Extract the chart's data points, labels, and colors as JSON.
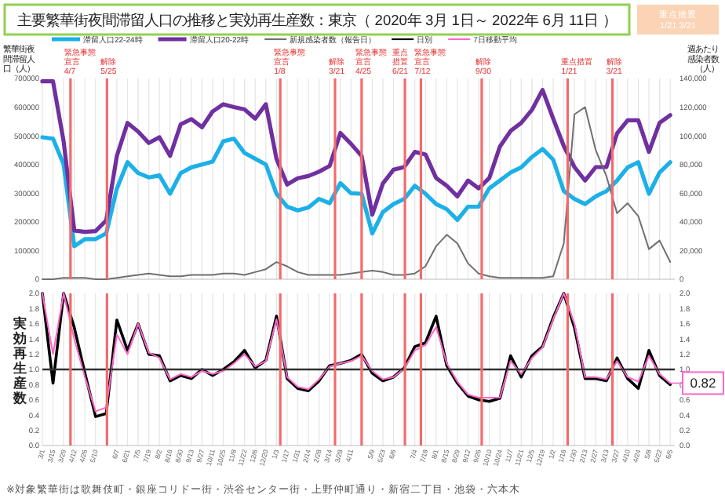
{
  "chart_data": [
    {
      "type": "line",
      "title": "主要繁華街夜間滞留人口の推移と実効再生産数：東京（ 2020年 3月 1日～ 2022年 6月 11日 ）",
      "ylabel": "繁華街夜間滞留人口（人）",
      "y2label": "週あたり感染者数（人）",
      "legend": "top",
      "grid": "x",
      "tick_labels": "y",
      "annotations": [
        "重点措置 1/21 3/21"
      ],
      "x": [
        "2020-03-01",
        "2020-03-15",
        "2020-03-29",
        "2020-04-12",
        "2020-04-26",
        "2020-05-10",
        "2020-05-24",
        "2020-06-07",
        "2020-06-21",
        "2020-07-05",
        "2020-07-19",
        "2020-08-02",
        "2020-08-16",
        "2020-08-30",
        "2020-09-13",
        "2020-09-27",
        "2020-10-11",
        "2020-10-25",
        "2020-11-08",
        "2020-11-22",
        "2020-12-06",
        "2020-12-20",
        "2021-01-03",
        "2021-01-17",
        "2021-01-31",
        "2021-02-14",
        "2021-02-28",
        "2021-03-14",
        "2021-03-28",
        "2021-04-11",
        "2021-04-25",
        "2021-05-09",
        "2021-05-23",
        "2021-06-06",
        "2021-06-20",
        "2021-07-04",
        "2021-07-18",
        "2021-08-01",
        "2021-08-15",
        "2021-08-29",
        "2021-09-12",
        "2021-09-26",
        "2021-10-10",
        "2021-10-24",
        "2021-11-07",
        "2021-11-21",
        "2021-12-05",
        "2021-12-19",
        "2022-01-02",
        "2022-01-16",
        "2022-01-30",
        "2022-02-13",
        "2022-02-27",
        "2022-03-13",
        "2022-03-27",
        "2022-04-10",
        "2022-04-24",
        "2022-05-08",
        "2022-05-22",
        "2022-06-05"
      ],
      "xlim": [
        "2020-03-01",
        "2022-06-11"
      ],
      "xticks": [
        {
          "value": "2020-03-01",
          "label": null
        },
        {
          "value": "2020-03-15",
          "label": null
        },
        {
          "value": "2020-03-29",
          "label": null
        },
        {
          "value": "2020-04-12",
          "label": null
        },
        {
          "value": "2020-04-26",
          "label": null
        },
        {
          "value": "2020-05-10",
          "label": null
        },
        {
          "value": "2020-06-07",
          "label": null
        },
        {
          "value": "2020-06-21",
          "label": null
        },
        {
          "value": "2020-07-05",
          "label": null
        },
        {
          "value": "2020-07-19",
          "label": null
        },
        {
          "value": "2020-08-02",
          "label": null
        },
        {
          "value": "2020-08-16",
          "label": null
        },
        {
          "value": "2020-08-30",
          "label": null
        },
        {
          "value": "2020-09-13",
          "label": null
        },
        {
          "value": "2020-09-27",
          "label": null
        },
        {
          "value": "2020-10-11",
          "label": null
        },
        {
          "value": "2020-10-25",
          "label": null
        },
        {
          "value": "2020-11-08",
          "label": null
        },
        {
          "value": "2020-11-22",
          "label": null
        },
        {
          "value": "2020-12-06",
          "label": null
        },
        {
          "value": "2020-12-20",
          "label": null
        },
        {
          "value": "2021-01-03",
          "label": null
        },
        {
          "value": "2021-01-17",
          "label": null
        },
        {
          "value": "2021-01-31",
          "label": null
        },
        {
          "value": "2021-02-14",
          "label": null
        },
        {
          "value": "2021-02-28",
          "label": null
        },
        {
          "value": "2021-03-14",
          "label": null
        },
        {
          "value": "2021-03-28",
          "label": null
        },
        {
          "value": "2021-04-11",
          "label": null
        },
        {
          "value": "2021-05-09",
          "label": null
        },
        {
          "value": "2021-05-23",
          "label": null
        },
        {
          "value": "2021-06-06",
          "label": null
        },
        {
          "value": "2021-07-04",
          "label": null
        },
        {
          "value": "2021-07-18",
          "label": null
        },
        {
          "value": "2021-08-01",
          "label": null
        },
        {
          "value": "2021-08-15",
          "label": null
        },
        {
          "value": "2021-08-29",
          "label": null
        },
        {
          "value": "2021-09-12",
          "label": null
        },
        {
          "value": "2021-09-26",
          "label": null
        },
        {
          "value": "2021-10-10",
          "label": null
        },
        {
          "value": "2021-10-24",
          "label": null
        },
        {
          "value": "2021-11-07",
          "label": null
        },
        {
          "value": "2021-11-21",
          "label": null
        },
        {
          "value": "2021-12-05",
          "label": null
        },
        {
          "value": "2021-12-19",
          "label": null
        },
        {
          "value": "2022-01-02",
          "label": null
        },
        {
          "value": "2022-01-16",
          "label": null
        },
        {
          "value": "2022-01-30",
          "label": null
        },
        {
          "value": "2022-02-13",
          "label": null
        },
        {
          "value": "2022-02-27",
          "label": null
        },
        {
          "value": "2022-03-13",
          "label": null
        },
        {
          "value": "2022-03-27",
          "label": null
        },
        {
          "value": "2022-04-10",
          "label": null
        },
        {
          "value": "2022-04-24",
          "label": null
        },
        {
          "value": "2022-05-08",
          "label": null
        },
        {
          "value": "2022-05-22",
          "label": null
        },
        {
          "value": "2022-06-05",
          "label": null
        }
      ],
      "ylim": [
        0,
        700000
      ],
      "yticks": [
        0,
        100000,
        200000,
        300000,
        400000,
        500000,
        600000,
        700000
      ],
      "y2lim": [
        0,
        140000
      ],
      "y2ticks": [
        0,
        {
          "value": 20000,
          "label": "20,000"
        },
        {
          "value": 40000,
          "label": "40,000"
        },
        {
          "value": 60000,
          "label": "60,000"
        },
        {
          "value": 80000,
          "label": "80,000"
        },
        {
          "value": 100000,
          "label": "100,000"
        },
        {
          "value": 120000,
          "label": "120,000"
        },
        {
          "value": 140000,
          "label": "140,000"
        }
      ],
      "series": [
        {
          "name": "滞留人口22-24時",
          "color": "#1cb0e8",
          "values": [
            495000,
            490000,
            400000,
            115000,
            140000,
            140000,
            160000,
            316000,
            408000,
            370000,
            355000,
            362000,
            298000,
            370000,
            390000,
            400000,
            410000,
            481000,
            490000,
            440000,
            420000,
            400000,
            298000,
            253000,
            240000,
            250000,
            280000,
            265000,
            335000,
            300000,
            298000,
            160000,
            234000,
            262000,
            280000,
            326000,
            298000,
            262000,
            244000,
            207000,
            253000,
            253000,
            317000,
            344000,
            372000,
            390000,
            426000,
            454000,
            417000,
            307000,
            280000,
            262000,
            289000,
            307000,
            344000,
            390000,
            408000,
            298000,
            372000,
            408000
          ]
        },
        {
          "name": "滞留人口20-22時",
          "color": "#7030a0",
          "values": [
            690000,
            690000,
            480000,
            170000,
            165000,
            168000,
            205000,
            430000,
            545000,
            515000,
            475000,
            495000,
            430000,
            540000,
            558000,
            530000,
            585000,
            610000,
            600000,
            592000,
            560000,
            610000,
            420000,
            330000,
            352000,
            360000,
            375000,
            395000,
            510000,
            472000,
            430000,
            225000,
            334000,
            382000,
            391000,
            444000,
            435000,
            353000,
            326000,
            289000,
            344000,
            317000,
            353000,
            463000,
            517000,
            545000,
            590000,
            660000,
            560000,
            464000,
            391000,
            344000,
            391000,
            391000,
            508000,
            554000,
            554000,
            444000,
            545000,
            572000
          ]
        },
        {
          "name": "新規感染者数（報告日）",
          "color": "#707070",
          "axis": "y2",
          "values": [
            0,
            0,
            1000,
            1000,
            1000,
            0,
            0,
            1000,
            2000,
            3000,
            4000,
            3000,
            2000,
            2000,
            3000,
            3000,
            3000,
            4000,
            4000,
            3000,
            5000,
            7000,
            12000,
            9000,
            5000,
            3000,
            3000,
            3000,
            3000,
            4000,
            5000,
            6000,
            5000,
            3000,
            3000,
            4000,
            9000,
            23000,
            31000,
            25000,
            11000,
            4000,
            2000,
            1000,
            1000,
            1000,
            1000,
            1000,
            2000,
            25000,
            115000,
            120000,
            90000,
            72000,
            46000,
            53000,
            44000,
            21000,
            27000,
            12000
          ]
        }
      ],
      "ref_lines": [
        {
          "axis": "x",
          "value": "2020-04-07",
          "label": "緊急事態宣言 4/7",
          "color": "#f26b6b"
        },
        {
          "axis": "x",
          "value": "2020-05-25",
          "label": "解除 5/25",
          "color": "#f26b6b"
        },
        {
          "axis": "x",
          "value": "2021-01-08",
          "label": "緊急事態宣言 1/8",
          "color": "#f26b6b"
        },
        {
          "axis": "x",
          "value": "2021-03-21",
          "label": "解除 3/21",
          "color": "#f26b6b"
        },
        {
          "axis": "x",
          "value": "2021-04-25",
          "label": "緊急事態宣言 4/25",
          "color": "#f26b6b"
        },
        {
          "axis": "x",
          "value": "2021-06-21",
          "label": "重点措置 6/21",
          "color": "#f26b6b"
        },
        {
          "axis": "x",
          "value": "2021-07-12",
          "label": "緊急事態宣言 7/12",
          "color": "#f26b6b"
        },
        {
          "axis": "x",
          "value": "2021-09-30",
          "label": "解除 9/30",
          "color": "#f26b6b"
        },
        {
          "axis": "x",
          "value": "2022-01-21",
          "label": "重点措置 1/21",
          "color": "#f26b6b"
        },
        {
          "axis": "x",
          "value": "2022-03-21",
          "label": "解除 3/21",
          "color": "#f26b6b"
        }
      ]
    },
    {
      "type": "line",
      "ylabel": "実効再生産数",
      "legend": "top",
      "grid": "x",
      "annotations": [
        {
          "text": "0.82",
          "x": "2022-06-05",
          "y": 0.82
        },
        "※対象繁華街は歌舞伎町・銀座コリドー街・渋谷センター街・上野仲町通り・新宿二丁目・池袋・六本木"
      ],
      "x": [
        "2020-03-01",
        "2020-03-15",
        "2020-03-29",
        "2020-04-12",
        "2020-04-26",
        "2020-05-10",
        "2020-05-24",
        "2020-06-07",
        "2020-06-21",
        "2020-07-05",
        "2020-07-19",
        "2020-08-02",
        "2020-08-16",
        "2020-08-30",
        "2020-09-13",
        "2020-09-27",
        "2020-10-11",
        "2020-10-25",
        "2020-11-08",
        "2020-11-22",
        "2020-12-06",
        "2020-12-20",
        "2021-01-03",
        "2021-01-17",
        "2021-01-31",
        "2021-02-14",
        "2021-02-28",
        "2021-03-14",
        "2021-03-28",
        "2021-04-11",
        "2021-04-25",
        "2021-05-09",
        "2021-05-23",
        "2021-06-06",
        "2021-06-20",
        "2021-07-04",
        "2021-07-18",
        "2021-08-01",
        "2021-08-15",
        "2021-08-29",
        "2021-09-12",
        "2021-09-26",
        "2021-10-10",
        "2021-10-24",
        "2021-11-07",
        "2021-11-21",
        "2021-12-05",
        "2021-12-19",
        "2022-01-02",
        "2022-01-16",
        "2022-01-30",
        "2022-02-13",
        "2022-02-27",
        "2022-03-13",
        "2022-03-27",
        "2022-04-10",
        "2022-04-24",
        "2022-05-08",
        "2022-05-22",
        "2022-06-05"
      ],
      "xlim": [
        "2020-03-01",
        "2022-06-11"
      ],
      "xticks": [
        {
          "value": "2020-03-01",
          "label": "3/1"
        },
        {
          "value": "2020-03-15",
          "label": "3/15"
        },
        {
          "value": "2020-03-29",
          "label": "3/29"
        },
        {
          "value": "2020-04-12",
          "label": "4/12"
        },
        {
          "value": "2020-04-26",
          "label": "4/26"
        },
        {
          "value": "2020-05-10",
          "label": "5/10"
        },
        {
          "value": "2020-06-07",
          "label": "6/7"
        },
        {
          "value": "2020-06-21",
          "label": "6/21"
        },
        {
          "value": "2020-07-05",
          "label": "7/5"
        },
        {
          "value": "2020-07-19",
          "label": "7/19"
        },
        {
          "value": "2020-08-02",
          "label": "8/2"
        },
        {
          "value": "2020-08-16",
          "label": "8/16"
        },
        {
          "value": "2020-08-30",
          "label": "8/30"
        },
        {
          "value": "2020-09-13",
          "label": "9/13"
        },
        {
          "value": "2020-09-27",
          "label": "9/27"
        },
        {
          "value": "2020-10-11",
          "label": "10/11"
        },
        {
          "value": "2020-10-25",
          "label": "10/25"
        },
        {
          "value": "2020-11-08",
          "label": "11/8"
        },
        {
          "value": "2020-11-22",
          "label": "11/22"
        },
        {
          "value": "2020-12-06",
          "label": "12/6"
        },
        {
          "value": "2020-12-20",
          "label": "12/20"
        },
        {
          "value": "2021-01-03",
          "label": "1/3"
        },
        {
          "value": "2021-01-17",
          "label": "1/17"
        },
        {
          "value": "2021-01-31",
          "label": "1/31"
        },
        {
          "value": "2021-02-14",
          "label": "2/14"
        },
        {
          "value": "2021-02-28",
          "label": "2/28"
        },
        {
          "value": "2021-03-14",
          "label": "3/14"
        },
        {
          "value": "2021-03-28",
          "label": "3/28"
        },
        {
          "value": "2021-04-11",
          "label": "4/11"
        },
        {
          "value": "2021-05-09",
          "label": "5/9"
        },
        {
          "value": "2021-05-23",
          "label": "5/23"
        },
        {
          "value": "2021-06-06",
          "label": "6/6"
        },
        {
          "value": "2021-07-04",
          "label": "7/4"
        },
        {
          "value": "2021-07-18",
          "label": "7/18"
        },
        {
          "value": "2021-08-01",
          "label": "8/1"
        },
        {
          "value": "2021-08-15",
          "label": "8/15"
        },
        {
          "value": "2021-08-29",
          "label": "8/29"
        },
        {
          "value": "2021-09-12",
          "label": "9/12"
        },
        {
          "value": "2021-09-26",
          "label": "9/26"
        },
        {
          "value": "2021-10-10",
          "label": "10/10"
        },
        {
          "value": "2021-10-24",
          "label": "10/24"
        },
        {
          "value": "2021-11-07",
          "label": "11/7"
        },
        {
          "value": "2021-11-21",
          "label": "11/21"
        },
        {
          "value": "2021-12-05",
          "label": "12/5"
        },
        {
          "value": "2021-12-19",
          "label": "12/19"
        },
        {
          "value": "2022-01-02",
          "label": "1/2"
        },
        {
          "value": "2022-01-16",
          "label": "1/16"
        },
        {
          "value": "2022-01-30",
          "label": "1/30"
        },
        {
          "value": "2022-02-13",
          "label": "2/13"
        },
        {
          "value": "2022-02-27",
          "label": "2/27"
        },
        {
          "value": "2022-03-13",
          "label": "3/13"
        },
        {
          "value": "2022-03-27",
          "label": "3/27"
        },
        {
          "value": "2022-04-10",
          "label": "4/10"
        },
        {
          "value": "2022-04-24",
          "label": "4/24"
        },
        {
          "value": "2022-05-08",
          "label": "5/8"
        },
        {
          "value": "2022-05-22",
          "label": "5/22"
        },
        {
          "value": "2022-06-05",
          "label": "6/5"
        }
      ],
      "ylim": [
        0,
        2
      ],
      "yticks": [
        {
          "value": 0,
          "label": "0.0"
        },
        0.2,
        0.4,
        0.6,
        0.8,
        {
          "value": 1,
          "label": "1.0"
        },
        1.2,
        1.4,
        1.6,
        1.8,
        {
          "value": 2,
          "label": "2.0"
        }
      ],
      "y2lim": [
        0,
        2
      ],
      "y2ticks": [
        {
          "value": 0,
          "label": "0.0"
        },
        0.2,
        0.4,
        0.6,
        0.8,
        {
          "value": 1,
          "label": "1.0"
        },
        1.2,
        1.4,
        1.6,
        1.8,
        {
          "value": 2,
          "label": "2.0"
        }
      ],
      "series": [
        {
          "name": "日別",
          "color": "#000000",
          "values": [
            2.0,
            0.82,
            2.0,
            1.55,
            0.95,
            0.38,
            0.42,
            1.65,
            1.25,
            1.6,
            1.2,
            1.18,
            0.85,
            0.92,
            0.88,
            1.0,
            0.92,
            1.0,
            1.1,
            1.25,
            1.02,
            1.12,
            1.7,
            0.88,
            0.75,
            0.72,
            0.85,
            1.05,
            1.08,
            1.12,
            1.2,
            0.95,
            0.85,
            0.9,
            1.02,
            1.3,
            1.35,
            1.7,
            1.05,
            0.82,
            0.65,
            0.6,
            0.58,
            0.62,
            1.18,
            0.9,
            1.18,
            1.3,
            1.68,
            2.0,
            1.55,
            0.88,
            0.88,
            0.85,
            1.15,
            0.88,
            0.75,
            1.25,
            0.92,
            0.8
          ]
        },
        {
          "name": "7日移動平均",
          "color": "#ff66cc",
          "values": [
            2.0,
            1.2,
            2.0,
            1.4,
            0.9,
            0.45,
            0.5,
            1.46,
            1.2,
            1.6,
            1.22,
            1.15,
            0.87,
            0.94,
            0.9,
            0.98,
            0.94,
            0.98,
            1.08,
            1.2,
            1.04,
            1.11,
            1.66,
            0.9,
            0.77,
            0.74,
            0.87,
            1.04,
            1.08,
            1.11,
            1.18,
            0.98,
            0.87,
            0.9,
            1.01,
            1.25,
            1.32,
            1.56,
            1.08,
            0.84,
            0.67,
            0.63,
            0.63,
            0.63,
            1.11,
            0.94,
            1.15,
            1.29,
            1.66,
            2.0,
            1.6,
            0.9,
            0.9,
            0.87,
            1.11,
            0.9,
            0.84,
            1.18,
            0.94,
            0.82
          ]
        }
      ],
      "ref_lines": [
        {
          "axis": "y",
          "value": 1,
          "color": "#333333"
        },
        {
          "axis": "x",
          "value": "2020-04-07",
          "color": "#f26b6b"
        },
        {
          "axis": "x",
          "value": "2020-05-25",
          "color": "#f26b6b"
        },
        {
          "axis": "x",
          "value": "2021-01-08",
          "color": "#f26b6b"
        },
        {
          "axis": "x",
          "value": "2021-03-21",
          "color": "#f26b6b"
        },
        {
          "axis": "x",
          "value": "2021-04-25",
          "color": "#f26b6b"
        },
        {
          "axis": "x",
          "value": "2021-06-21",
          "color": "#f26b6b"
        },
        {
          "axis": "x",
          "value": "2021-07-12",
          "color": "#f26b6b"
        },
        {
          "axis": "x",
          "value": "2021-09-30",
          "color": "#f26b6b"
        },
        {
          "axis": "x",
          "value": "2022-01-21",
          "color": "#f26b6b"
        },
        {
          "axis": "x",
          "value": "2022-03-21",
          "color": "#f26b6b"
        }
      ]
    }
  ]
}
